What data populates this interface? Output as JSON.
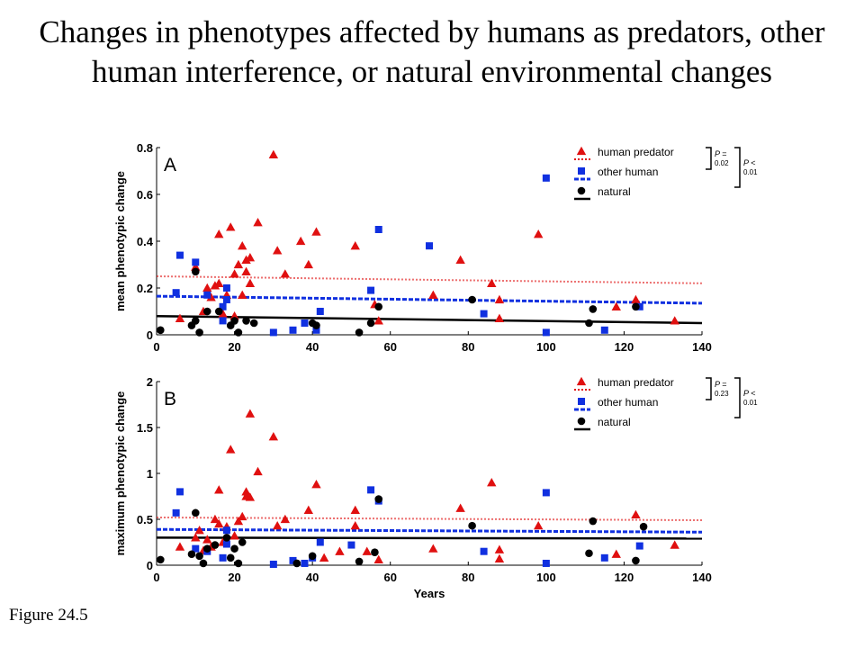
{
  "title": "Changes in phenotypes affected by humans as predators, other human interference, or natural environmental changes",
  "caption": "Figure 24.5",
  "colors": {
    "human_predator": "#e01010",
    "other_human": "#1030e0",
    "natural": "#000000"
  },
  "chart_data": [
    {
      "type": "scatter",
      "panel_label": "A",
      "title": "",
      "xlabel": "",
      "ylabel": "mean phenotypic change",
      "xlim": [
        0,
        140
      ],
      "ylim": [
        0,
        0.8
      ],
      "xticks": [
        0,
        20,
        40,
        60,
        80,
        100,
        120,
        140
      ],
      "yticks": [
        0,
        0.2,
        0.4,
        0.6,
        0.8
      ],
      "ytick_labels": [
        "0",
        "0.2",
        "0.4",
        "0.6",
        "0.8"
      ],
      "legend": {
        "placement": "top-right",
        "entries": [
          "human predator",
          "other human",
          "natural"
        ]
      },
      "stats": [
        {
          "label": "P =",
          "value": "0.02"
        },
        {
          "label": "P <",
          "value": "0.01"
        }
      ],
      "series": [
        {
          "name": "human predator",
          "marker": "triangle",
          "color": "#e01010",
          "points": [
            [
              6,
              0.07
            ],
            [
              10,
              0.29
            ],
            [
              12,
              0.1
            ],
            [
              13,
              0.2
            ],
            [
              14,
              0.16
            ],
            [
              15,
              0.21
            ],
            [
              16,
              0.22
            ],
            [
              16,
              0.43
            ],
            [
              17,
              0.09
            ],
            [
              18,
              0.17
            ],
            [
              19,
              0.46
            ],
            [
              20,
              0.26
            ],
            [
              20,
              0.08
            ],
            [
              21,
              0.3
            ],
            [
              22,
              0.38
            ],
            [
              22,
              0.17
            ],
            [
              23,
              0.32
            ],
            [
              23,
              0.27
            ],
            [
              24,
              0.33
            ],
            [
              24,
              0.22
            ],
            [
              26,
              0.48
            ],
            [
              30,
              0.77
            ],
            [
              31,
              0.36
            ],
            [
              33,
              0.26
            ],
            [
              37,
              0.4
            ],
            [
              39,
              0.3
            ],
            [
              41,
              0.44
            ],
            [
              51,
              0.38
            ],
            [
              56,
              0.13
            ],
            [
              57,
              0.06
            ],
            [
              71,
              0.17
            ],
            [
              78,
              0.32
            ],
            [
              86,
              0.22
            ],
            [
              88,
              0.07
            ],
            [
              88,
              0.15
            ],
            [
              98,
              0.43
            ],
            [
              118,
              0.12
            ],
            [
              123,
              0.15
            ],
            [
              133,
              0.06
            ]
          ]
        },
        {
          "name": "other human",
          "marker": "square",
          "color": "#1030e0",
          "points": [
            [
              5,
              0.18
            ],
            [
              6,
              0.34
            ],
            [
              10,
              0.31
            ],
            [
              13,
              0.17
            ],
            [
              17,
              0.06
            ],
            [
              17,
              0.12
            ],
            [
              18,
              0.15
            ],
            [
              18,
              0.2
            ],
            [
              30,
              0.01
            ],
            [
              35,
              0.02
            ],
            [
              38,
              0.05
            ],
            [
              41,
              0.02
            ],
            [
              42,
              0.1
            ],
            [
              55,
              0.19
            ],
            [
              57,
              0.45
            ],
            [
              70,
              0.38
            ],
            [
              84,
              0.09
            ],
            [
              100,
              0.01
            ],
            [
              100,
              0.67
            ],
            [
              115,
              0.02
            ],
            [
              124,
              0.12
            ]
          ]
        },
        {
          "name": "natural",
          "marker": "circle",
          "color": "#000000",
          "points": [
            [
              1,
              0.02
            ],
            [
              9,
              0.04
            ],
            [
              10,
              0.27
            ],
            [
              10,
              0.06
            ],
            [
              11,
              0.01
            ],
            [
              13,
              0.1
            ],
            [
              16,
              0.1
            ],
            [
              19,
              0.04
            ],
            [
              20,
              0.06
            ],
            [
              21,
              0.01
            ],
            [
              23,
              0.06
            ],
            [
              25,
              0.05
            ],
            [
              40,
              0.05
            ],
            [
              41,
              0.04
            ],
            [
              52,
              0.01
            ],
            [
              55,
              0.05
            ],
            [
              57,
              0.12
            ],
            [
              81,
              0.15
            ],
            [
              111,
              0.05
            ],
            [
              112,
              0.11
            ],
            [
              123,
              0.12
            ]
          ]
        }
      ],
      "trend_lines": [
        {
          "name": "human predator",
          "style": "dotted",
          "x": [
            0,
            140
          ],
          "y": [
            0.25,
            0.22
          ]
        },
        {
          "name": "other human",
          "style": "dashed",
          "x": [
            0,
            140
          ],
          "y": [
            0.165,
            0.135
          ]
        },
        {
          "name": "natural",
          "style": "solid",
          "x": [
            0,
            140
          ],
          "y": [
            0.08,
            0.05
          ]
        }
      ]
    },
    {
      "type": "scatter",
      "panel_label": "B",
      "title": "",
      "xlabel": "Years",
      "ylabel": "maximum phenotypic change",
      "xlim": [
        0,
        140
      ],
      "ylim": [
        0,
        2
      ],
      "xticks": [
        0,
        20,
        40,
        60,
        80,
        100,
        120,
        140
      ],
      "yticks": [
        0,
        0.5,
        1,
        1.5,
        2
      ],
      "ytick_labels": [
        "0",
        "0.5",
        "1",
        "1.5",
        "2"
      ],
      "legend": {
        "placement": "top-right",
        "entries": [
          "human predator",
          "other human",
          "natural"
        ]
      },
      "stats": [
        {
          "label": "P =",
          "value": "0.23"
        },
        {
          "label": "P <",
          "value": "0.01"
        }
      ],
      "series": [
        {
          "name": "human predator",
          "marker": "triangle",
          "color": "#e01010",
          "points": [
            [
              6,
              0.2
            ],
            [
              10,
              0.3
            ],
            [
              11,
              0.38
            ],
            [
              12,
              0.16
            ],
            [
              13,
              0.28
            ],
            [
              14,
              0.2
            ],
            [
              15,
              0.5
            ],
            [
              16,
              0.82
            ],
            [
              16,
              0.45
            ],
            [
              17,
              0.25
            ],
            [
              18,
              0.42
            ],
            [
              19,
              1.26
            ],
            [
              20,
              0.32
            ],
            [
              21,
              0.48
            ],
            [
              22,
              0.53
            ],
            [
              23,
              0.8
            ],
            [
              23,
              0.75
            ],
            [
              24,
              1.65
            ],
            [
              24,
              0.74
            ],
            [
              26,
              1.02
            ],
            [
              30,
              1.4
            ],
            [
              31,
              0.43
            ],
            [
              33,
              0.5
            ],
            [
              39,
              0.6
            ],
            [
              41,
              0.88
            ],
            [
              43,
              0.08
            ],
            [
              47,
              0.15
            ],
            [
              51,
              0.6
            ],
            [
              51,
              0.43
            ],
            [
              54,
              0.15
            ],
            [
              57,
              0.06
            ],
            [
              71,
              0.18
            ],
            [
              78,
              0.62
            ],
            [
              86,
              0.9
            ],
            [
              88,
              0.07
            ],
            [
              88,
              0.17
            ],
            [
              98,
              0.43
            ],
            [
              118,
              0.12
            ],
            [
              123,
              0.55
            ],
            [
              133,
              0.22
            ]
          ]
        },
        {
          "name": "other human",
          "marker": "square",
          "color": "#1030e0",
          "points": [
            [
              5,
              0.57
            ],
            [
              6,
              0.8
            ],
            [
              10,
              0.18
            ],
            [
              13,
              0.15
            ],
            [
              17,
              0.08
            ],
            [
              18,
              0.23
            ],
            [
              18,
              0.38
            ],
            [
              30,
              0.01
            ],
            [
              35,
              0.05
            ],
            [
              38,
              0.02
            ],
            [
              40,
              0.08
            ],
            [
              42,
              0.25
            ],
            [
              50,
              0.22
            ],
            [
              55,
              0.82
            ],
            [
              57,
              0.7
            ],
            [
              84,
              0.15
            ],
            [
              100,
              0.02
            ],
            [
              100,
              0.79
            ],
            [
              115,
              0.08
            ],
            [
              124,
              0.21
            ]
          ]
        },
        {
          "name": "natural",
          "marker": "circle",
          "color": "#000000",
          "points": [
            [
              1,
              0.06
            ],
            [
              9,
              0.12
            ],
            [
              10,
              0.57
            ],
            [
              11,
              0.1
            ],
            [
              12,
              0.02
            ],
            [
              13,
              0.18
            ],
            [
              15,
              0.22
            ],
            [
              18,
              0.3
            ],
            [
              19,
              0.08
            ],
            [
              20,
              0.18
            ],
            [
              21,
              0.02
            ],
            [
              22,
              0.25
            ],
            [
              36,
              0.02
            ],
            [
              40,
              0.1
            ],
            [
              52,
              0.04
            ],
            [
              56,
              0.14
            ],
            [
              57,
              0.72
            ],
            [
              81,
              0.43
            ],
            [
              111,
              0.13
            ],
            [
              112,
              0.48
            ],
            [
              123,
              0.05
            ],
            [
              125,
              0.42
            ]
          ]
        }
      ],
      "trend_lines": [
        {
          "name": "human predator",
          "style": "dotted",
          "x": [
            0,
            140
          ],
          "y": [
            0.52,
            0.49
          ]
        },
        {
          "name": "other human",
          "style": "dashed",
          "x": [
            0,
            140
          ],
          "y": [
            0.39,
            0.36
          ]
        },
        {
          "name": "natural",
          "style": "solid",
          "x": [
            0,
            140
          ],
          "y": [
            0.3,
            0.29
          ]
        }
      ]
    }
  ]
}
